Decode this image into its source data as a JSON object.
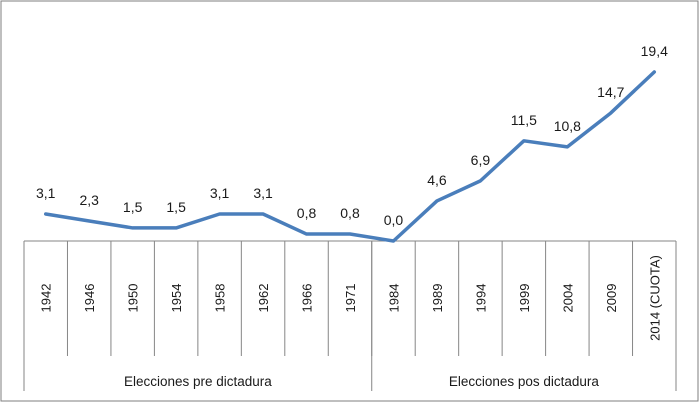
{
  "chart_data": {
    "type": "line",
    "categories": [
      "1942",
      "1946",
      "1950",
      "1954",
      "1958",
      "1962",
      "1966",
      "1971",
      "1984",
      "1989",
      "1994",
      "1999",
      "2004",
      "2009",
      "2014 (CUOTA)"
    ],
    "values": [
      3.1,
      2.3,
      1.5,
      1.5,
      3.1,
      3.1,
      0.8,
      0.8,
      0.0,
      4.6,
      6.9,
      11.5,
      10.8,
      14.7,
      19.4
    ],
    "data_labels": [
      "3,1",
      "2,3",
      "1,5",
      "1,5",
      "3,1",
      "3,1",
      "0,8",
      "0,8",
      "0,0",
      "4,6",
      "6,9",
      "11,5",
      "10,8",
      "14,7",
      "19,4"
    ],
    "groups": [
      {
        "label": "Elecciones pre dictadura",
        "count": 8
      },
      {
        "label": "Elecciones pos dictadura",
        "count": 7
      }
    ],
    "line_color": "#4a7ebb",
    "ylim": [
      0,
      19.4
    ],
    "grid": false,
    "legend": "none"
  }
}
